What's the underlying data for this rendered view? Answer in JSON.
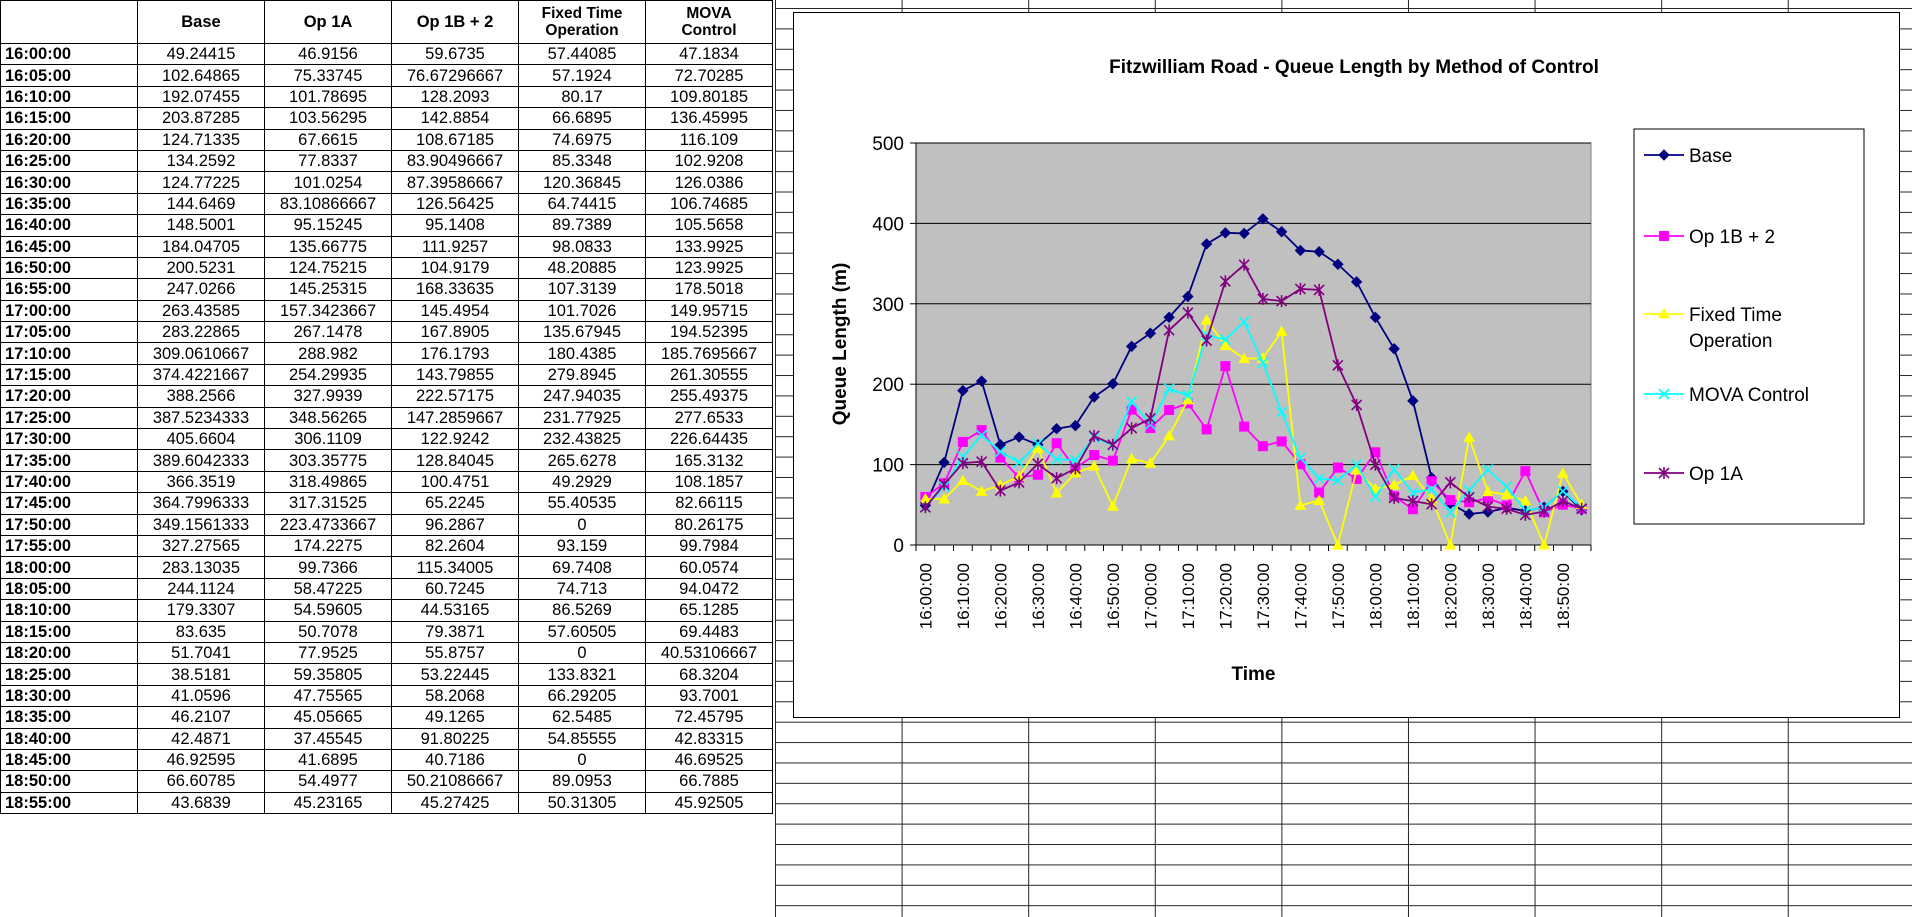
{
  "table": {
    "headers": [
      "",
      "Base",
      "Op 1A",
      "Op 1B + 2",
      "Fixed Time Operation",
      "MOVA Control"
    ],
    "header_lines": [
      [
        ""
      ],
      [
        "Base"
      ],
      [
        "Op 1A"
      ],
      [
        "Op 1B + 2"
      ],
      [
        "Fixed Time",
        "Operation"
      ],
      [
        "MOVA",
        "Control"
      ]
    ],
    "rows": [
      [
        "16:00:00",
        "49.24415",
        "46.9156",
        "59.6735",
        "57.44085",
        "47.1834"
      ],
      [
        "16:05:00",
        "102.64865",
        "75.33745",
        "76.67296667",
        "57.1924",
        "72.70285"
      ],
      [
        "16:10:00",
        "192.07455",
        "101.78695",
        "128.2093",
        "80.17",
        "109.80185"
      ],
      [
        "16:15:00",
        "203.87285",
        "103.56295",
        "142.8854",
        "66.6895",
        "136.45995"
      ],
      [
        "16:20:00",
        "124.71335",
        "67.6615",
        "108.67185",
        "74.6975",
        "116.109"
      ],
      [
        "16:25:00",
        "134.2592",
        "77.8337",
        "83.90496667",
        "85.3348",
        "102.9208"
      ],
      [
        "16:30:00",
        "124.77225",
        "101.0254",
        "87.39586667",
        "120.36845",
        "126.0386"
      ],
      [
        "16:35:00",
        "144.6469",
        "83.10866667",
        "126.56425",
        "64.74415",
        "106.74685"
      ],
      [
        "16:40:00",
        "148.5001",
        "95.15245",
        "95.1408",
        "89.7389",
        "105.5658"
      ],
      [
        "16:45:00",
        "184.04705",
        "135.66775",
        "111.9257",
        "98.0833",
        "133.9925"
      ],
      [
        "16:50:00",
        "200.5231",
        "124.75215",
        "104.9179",
        "48.20885",
        "123.9925"
      ],
      [
        "16:55:00",
        "247.0266",
        "145.25315",
        "168.33635",
        "107.3139",
        "178.5018"
      ],
      [
        "17:00:00",
        "263.43585",
        "157.3423667",
        "145.4954",
        "101.7026",
        "149.95715"
      ],
      [
        "17:05:00",
        "283.22865",
        "267.1478",
        "167.8905",
        "135.67945",
        "194.52395"
      ],
      [
        "17:10:00",
        "309.0610667",
        "288.982",
        "176.1793",
        "180.4385",
        "185.7695667"
      ],
      [
        "17:15:00",
        "374.4221667",
        "254.29935",
        "143.79855",
        "279.8945",
        "261.30555"
      ],
      [
        "17:20:00",
        "388.2566",
        "327.9939",
        "222.57175",
        "247.94035",
        "255.49375"
      ],
      [
        "17:25:00",
        "387.5234333",
        "348.56265",
        "147.2859667",
        "231.77925",
        "277.6533"
      ],
      [
        "17:30:00",
        "405.6604",
        "306.1109",
        "122.9242",
        "232.43825",
        "226.64435"
      ],
      [
        "17:35:00",
        "389.6042333",
        "303.35775",
        "128.84045",
        "265.6278",
        "165.3132"
      ],
      [
        "17:40:00",
        "366.3519",
        "318.49865",
        "100.4751",
        "49.2929",
        "108.1857"
      ],
      [
        "17:45:00",
        "364.7996333",
        "317.31525",
        "65.2245",
        "55.40535",
        "82.66115"
      ],
      [
        "17:50:00",
        "349.1561333",
        "223.4733667",
        "96.2867",
        "0",
        "80.26175"
      ],
      [
        "17:55:00",
        "327.27565",
        "174.2275",
        "82.2604",
        "93.159",
        "99.7984"
      ],
      [
        "18:00:00",
        "283.13035",
        "99.7366",
        "115.34005",
        "69.7408",
        "60.0574"
      ],
      [
        "18:05:00",
        "244.1124",
        "58.47225",
        "60.7245",
        "74.713",
        "94.0472"
      ],
      [
        "18:10:00",
        "179.3307",
        "54.59605",
        "44.53165",
        "86.5269",
        "65.1285"
      ],
      [
        "18:15:00",
        "83.635",
        "50.7078",
        "79.3871",
        "57.60505",
        "69.4483"
      ],
      [
        "18:20:00",
        "51.7041",
        "77.9525",
        "55.8757",
        "0",
        "40.53106667"
      ],
      [
        "18:25:00",
        "38.5181",
        "59.35805",
        "53.22445",
        "133.8321",
        "68.3204"
      ],
      [
        "18:30:00",
        "41.0596",
        "47.75565",
        "58.2068",
        "66.29205",
        "93.7001"
      ],
      [
        "18:35:00",
        "46.2107",
        "45.05665",
        "49.1265",
        "62.5485",
        "72.45795"
      ],
      [
        "18:40:00",
        "42.4871",
        "37.45545",
        "91.80225",
        "54.85555",
        "42.83315"
      ],
      [
        "18:45:00",
        "46.92595",
        "41.6895",
        "40.7186",
        "0",
        "46.69525"
      ],
      [
        "18:50:00",
        "66.60785",
        "54.4977",
        "50.21086667",
        "89.0953",
        "66.7885"
      ],
      [
        "18:55:00",
        "43.6839",
        "45.23165",
        "45.27425",
        "50.31305",
        "45.92505"
      ]
    ]
  },
  "chart_data": {
    "type": "line",
    "title": "Fitzwilliam Road - Queue Length by Method of Control",
    "xlabel": "Time",
    "ylabel": "Queue Length (m)",
    "ylim": [
      0,
      500
    ],
    "yticks": [
      "0",
      "100",
      "200",
      "300",
      "400",
      "500"
    ],
    "grid": true,
    "plot_background": "#c0c0c0",
    "legend_position": "right",
    "x": [
      "16:00:00",
      "16:05:00",
      "16:10:00",
      "16:15:00",
      "16:20:00",
      "16:25:00",
      "16:30:00",
      "16:35:00",
      "16:40:00",
      "16:45:00",
      "16:50:00",
      "16:55:00",
      "17:00:00",
      "17:05:00",
      "17:10:00",
      "17:15:00",
      "17:20:00",
      "17:25:00",
      "17:30:00",
      "17:35:00",
      "17:40:00",
      "17:45:00",
      "17:50:00",
      "17:55:00",
      "18:00:00",
      "18:05:00",
      "18:10:00",
      "18:15:00",
      "18:20:00",
      "18:25:00",
      "18:30:00",
      "18:35:00",
      "18:40:00",
      "18:45:00",
      "18:50:00",
      "18:55:00"
    ],
    "xtick_labels": [
      "16:00:00",
      "16:10:00",
      "16:20:00",
      "16:30:00",
      "16:40:00",
      "16:50:00",
      "17:00:00",
      "17:10:00",
      "17:20:00",
      "17:30:00",
      "17:40:00",
      "17:50:00",
      "18:00:00",
      "18:10:00",
      "18:20:00",
      "18:30:00",
      "18:40:00",
      "18:50:00"
    ],
    "series": [
      {
        "name": "Base",
        "color": "#000080",
        "marker": "diamond",
        "values": [
          49.24415,
          102.64865,
          192.07455,
          203.87285,
          124.71335,
          134.2592,
          124.77225,
          144.6469,
          148.5001,
          184.04705,
          200.5231,
          247.0266,
          263.43585,
          283.22865,
          309.0610667,
          374.4221667,
          388.2566,
          387.5234333,
          405.6604,
          389.6042333,
          366.3519,
          364.7996333,
          349.1561333,
          327.27565,
          283.13035,
          244.1124,
          179.3307,
          83.635,
          51.7041,
          38.5181,
          41.0596,
          46.2107,
          42.4871,
          46.92595,
          66.60785,
          43.6839
        ]
      },
      {
        "name": "Op 1B + 2",
        "color": "#ff00ff",
        "marker": "square",
        "values": [
          59.6735,
          76.67296667,
          128.2093,
          142.8854,
          108.67185,
          83.90496667,
          87.39586667,
          126.56425,
          95.1408,
          111.9257,
          104.9179,
          168.33635,
          145.4954,
          167.8905,
          176.1793,
          143.79855,
          222.57175,
          147.2859667,
          122.9242,
          128.84045,
          100.4751,
          65.2245,
          96.2867,
          82.2604,
          115.34005,
          60.7245,
          44.53165,
          79.3871,
          55.8757,
          53.22445,
          58.2068,
          49.1265,
          91.80225,
          40.7186,
          50.21086667,
          45.27425
        ]
      },
      {
        "name": "Fixed Time Operation",
        "color": "#ffff00",
        "marker": "triangle",
        "values": [
          57.44085,
          57.1924,
          80.17,
          66.6895,
          74.6975,
          85.3348,
          120.36845,
          64.74415,
          89.7389,
          98.0833,
          48.20885,
          107.3139,
          101.7026,
          135.67945,
          180.4385,
          279.8945,
          247.94035,
          231.77925,
          232.43825,
          265.6278,
          49.2929,
          55.40535,
          0,
          93.159,
          69.7408,
          74.713,
          86.5269,
          57.60505,
          0,
          133.8321,
          66.29205,
          62.5485,
          54.85555,
          0,
          89.0953,
          50.31305
        ]
      },
      {
        "name": "MOVA Control",
        "color": "#00ffff",
        "marker": "x",
        "values": [
          47.1834,
          72.70285,
          109.80185,
          136.45995,
          116.109,
          102.9208,
          126.0386,
          106.74685,
          105.5658,
          133.9925,
          123.9925,
          178.5018,
          149.95715,
          194.52395,
          185.7695667,
          261.30555,
          255.49375,
          277.6533,
          226.64435,
          165.3132,
          108.1857,
          82.66115,
          80.26175,
          99.7984,
          60.0574,
          94.0472,
          65.1285,
          69.4483,
          40.53106667,
          68.3204,
          93.7001,
          72.45795,
          42.83315,
          46.69525,
          66.7885,
          45.92505
        ]
      },
      {
        "name": "Op 1A",
        "color": "#800080",
        "marker": "star",
        "values": [
          46.9156,
          75.33745,
          101.78695,
          103.56295,
          67.6615,
          77.8337,
          101.0254,
          83.10866667,
          95.15245,
          135.66775,
          124.75215,
          145.25315,
          157.3423667,
          267.1478,
          288.982,
          254.29935,
          327.9939,
          348.56265,
          306.1109,
          303.35775,
          318.49865,
          317.31525,
          223.4733667,
          174.2275,
          99.7366,
          58.47225,
          54.59605,
          50.7078,
          77.9525,
          59.35805,
          47.75565,
          45.05665,
          37.45545,
          41.6895,
          54.4977,
          45.23165
        ]
      }
    ],
    "legend_lines": [
      [
        "Base"
      ],
      [
        "Op 1B + 2"
      ],
      [
        "Fixed Time",
        "Operation"
      ],
      [
        "MOVA Control"
      ],
      [
        "Op 1A"
      ]
    ]
  }
}
